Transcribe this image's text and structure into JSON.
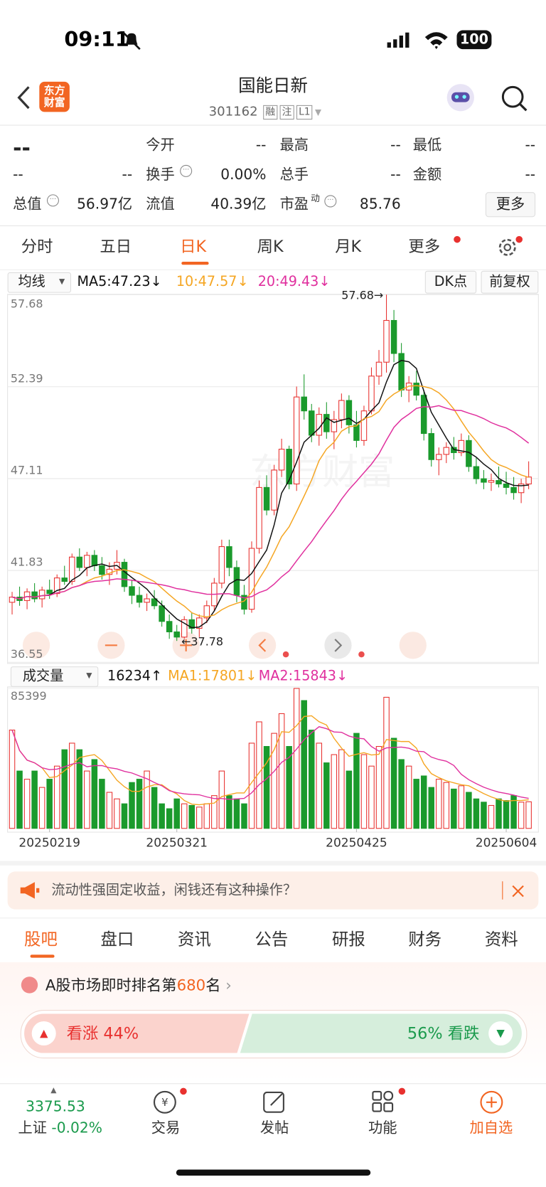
{
  "status": {
    "time": "09:11",
    "battery": "100"
  },
  "header": {
    "logo": [
      "东方",
      "财富"
    ],
    "title": "国能日新",
    "code": "301162",
    "badges": [
      "融",
      "注",
      "L1"
    ]
  },
  "quote": {
    "price": "--",
    "change": "--",
    "change_pct": "--",
    "cells": [
      [
        "今开",
        "--"
      ],
      [
        "最高",
        "--"
      ],
      [
        "最低",
        "--"
      ],
      [
        "换手",
        "0.00%"
      ],
      [
        "总手",
        "--"
      ],
      [
        "金额",
        "--"
      ],
      [
        "总值",
        "56.97亿"
      ],
      [
        "流值",
        "40.39亿"
      ],
      [
        "市盈",
        "85.76"
      ]
    ],
    "pe_sup": "动",
    "more": "更多"
  },
  "period_tabs": [
    "分时",
    "五日",
    "日K",
    "周K",
    "月K",
    "更多"
  ],
  "chart_data": {
    "type": "candlestick",
    "indicator": "均线",
    "ma_labels": [
      "MA5:47.23↓",
      "10:47.57↓",
      "20:49.43↓"
    ],
    "ma_colors": [
      "#111111",
      "#f5a623",
      "#e0309e"
    ],
    "buttons": [
      "DK点",
      "前复权"
    ],
    "up_color": "#e8312f",
    "down_color": "#1a9a2c",
    "ylim": [
      36.55,
      57.68
    ],
    "yticks": [
      57.68,
      52.39,
      47.11,
      41.83,
      36.55
    ],
    "high_label": "57.68→",
    "low_label": "←37.78",
    "ohlc": [
      [
        40.0,
        40.6,
        39.3,
        40.3
      ],
      [
        40.3,
        40.9,
        39.8,
        40.1
      ],
      [
        40.1,
        40.8,
        39.6,
        40.6
      ],
      [
        40.6,
        41.1,
        40.0,
        40.2
      ],
      [
        40.2,
        40.9,
        39.7,
        40.7
      ],
      [
        40.7,
        41.3,
        40.2,
        40.5
      ],
      [
        40.5,
        41.6,
        40.3,
        41.4
      ],
      [
        41.4,
        42.1,
        41.0,
        41.2
      ],
      [
        41.2,
        42.8,
        41.0,
        42.6
      ],
      [
        42.6,
        43.1,
        41.8,
        42.0
      ],
      [
        42.0,
        42.9,
        41.5,
        42.7
      ],
      [
        42.7,
        43.0,
        41.8,
        42.1
      ],
      [
        42.1,
        42.6,
        41.3,
        41.6
      ],
      [
        41.6,
        42.3,
        41.0,
        41.9
      ],
      [
        41.9,
        43.0,
        41.6,
        42.3
      ],
      [
        42.3,
        42.5,
        40.6,
        40.9
      ],
      [
        40.9,
        41.3,
        39.9,
        40.4
      ],
      [
        40.4,
        40.9,
        39.7,
        40.0
      ],
      [
        40.0,
        40.5,
        39.5,
        40.2
      ],
      [
        40.2,
        40.7,
        39.6,
        39.8
      ],
      [
        39.8,
        40.1,
        38.6,
        38.9
      ],
      [
        38.9,
        39.3,
        37.9,
        38.3
      ],
      [
        38.3,
        38.7,
        37.78,
        38.0
      ],
      [
        38.0,
        39.2,
        37.9,
        39.0
      ],
      [
        39.0,
        39.4,
        38.2,
        38.5
      ],
      [
        38.5,
        39.3,
        38.0,
        39.1
      ],
      [
        39.1,
        40.1,
        38.8,
        39.8
      ],
      [
        39.8,
        41.4,
        39.5,
        41.1
      ],
      [
        41.1,
        43.6,
        40.8,
        43.2
      ],
      [
        43.2,
        43.6,
        41.5,
        42.0
      ],
      [
        42.0,
        42.4,
        40.0,
        40.4
      ],
      [
        40.4,
        41.0,
        39.3,
        39.6
      ],
      [
        39.6,
        43.5,
        39.4,
        43.1
      ],
      [
        43.1,
        47.0,
        42.8,
        46.6
      ],
      [
        46.6,
        47.3,
        45.0,
        45.3
      ],
      [
        45.3,
        47.9,
        45.0,
        47.6
      ],
      [
        47.6,
        49.4,
        47.2,
        48.8
      ],
      [
        48.8,
        49.0,
        46.5,
        46.8
      ],
      [
        46.8,
        52.4,
        46.4,
        51.8
      ],
      [
        51.8,
        53.1,
        50.5,
        51.0
      ],
      [
        51.0,
        51.4,
        49.2,
        49.6
      ],
      [
        49.6,
        51.2,
        49.0,
        50.8
      ],
      [
        50.8,
        51.5,
        49.4,
        49.8
      ],
      [
        49.8,
        51.0,
        48.8,
        50.5
      ],
      [
        50.5,
        52.0,
        50.0,
        51.6
      ],
      [
        51.6,
        51.9,
        49.7,
        50.2
      ],
      [
        50.2,
        51.0,
        48.9,
        49.3
      ],
      [
        49.3,
        51.3,
        49.0,
        51.0
      ],
      [
        51.0,
        53.5,
        50.8,
        53.0
      ],
      [
        53.0,
        54.5,
        52.5,
        53.8
      ],
      [
        53.8,
        57.68,
        53.2,
        56.2
      ],
      [
        56.2,
        56.8,
        53.8,
        54.3
      ],
      [
        54.3,
        54.9,
        51.8,
        52.2
      ],
      [
        52.2,
        53.0,
        51.5,
        52.6
      ],
      [
        52.6,
        53.3,
        51.6,
        51.9
      ],
      [
        51.9,
        52.2,
        49.3,
        49.7
      ],
      [
        49.7,
        50.0,
        47.8,
        48.2
      ],
      [
        48.2,
        48.9,
        47.3,
        48.5
      ],
      [
        48.5,
        49.2,
        48.0,
        48.9
      ],
      [
        48.9,
        49.5,
        48.2,
        48.6
      ],
      [
        48.6,
        49.7,
        48.4,
        49.3
      ],
      [
        49.3,
        49.6,
        47.5,
        47.8
      ],
      [
        47.8,
        48.3,
        46.8,
        47.1
      ],
      [
        47.1,
        47.6,
        46.5,
        46.9
      ],
      [
        46.9,
        47.4,
        46.4,
        47.0
      ],
      [
        47.0,
        47.8,
        46.6,
        46.8
      ],
      [
        46.8,
        47.5,
        46.2,
        46.6
      ],
      [
        46.6,
        47.2,
        45.9,
        46.3
      ],
      [
        46.3,
        47.1,
        45.7,
        46.8
      ],
      [
        46.8,
        48.1,
        46.5,
        47.2
      ]
    ],
    "x_labels": [
      null,
      null,
      null,
      null,
      null,
      "20250219",
      null,
      null,
      null,
      null,
      null,
      null,
      null,
      null,
      null,
      null,
      null,
      null,
      null,
      null,
      null,
      null,
      "20250321",
      null,
      null,
      null,
      null,
      null,
      null,
      null,
      null,
      null,
      null,
      null,
      null,
      null,
      null,
      null,
      null,
      null,
      null,
      null,
      null,
      null,
      null,
      null,
      "20250425",
      null,
      null,
      null,
      null,
      null,
      null,
      null,
      null,
      null,
      null,
      null,
      null,
      null,
      null,
      null,
      null,
      null,
      null,
      null,
      "20250604",
      null,
      null,
      null
    ],
    "volume": {
      "indicator": "成交量",
      "labels": [
        "16234↑",
        "MA1:17801↓",
        "MA2:15843↓"
      ],
      "label_colors": [
        "#111111",
        "#f5a623",
        "#e0309e"
      ],
      "ylim": [
        0,
        85399
      ],
      "yticks": [
        85399
      ],
      "values": [
        60000,
        35000,
        30000,
        35000,
        25000,
        30000,
        38000,
        48000,
        52000,
        48000,
        35000,
        42000,
        30000,
        22000,
        18000,
        15000,
        28000,
        30000,
        35000,
        25000,
        15000,
        12000,
        18000,
        15000,
        14000,
        13000,
        15000,
        20000,
        35000,
        20000,
        18000,
        15000,
        52000,
        65000,
        50000,
        58000,
        70000,
        50000,
        85399,
        78000,
        60000,
        52000,
        40000,
        45000,
        48000,
        35000,
        58000,
        45000,
        38000,
        50000,
        80000,
        55000,
        42000,
        38000,
        30000,
        32000,
        25000,
        30000,
        28000,
        24000,
        26000,
        22000,
        18000,
        16000,
        14000,
        18000,
        17000,
        20000,
        16000,
        16234
      ]
    }
  },
  "banner": {
    "text": "流动性强固定收益，闲钱还有这种操作？"
  },
  "section_tabs": [
    "股吧",
    "盘口",
    "资讯",
    "公告",
    "研报",
    "财务",
    "资料"
  ],
  "rank": {
    "prefix": "A股市场即时排名第",
    "number": "680",
    "suffix": "名"
  },
  "sentiment": {
    "bull": {
      "label": "看涨",
      "value": 44,
      "value_label": "44%"
    },
    "bear": {
      "label": "看跌",
      "value": 56,
      "value_label": "56%"
    }
  },
  "bottom_nav": {
    "index_value": "3375.53",
    "index_name": "上证",
    "index_change": "-0.02%",
    "items": [
      "交易",
      "发帖",
      "功能",
      "加自选"
    ]
  }
}
